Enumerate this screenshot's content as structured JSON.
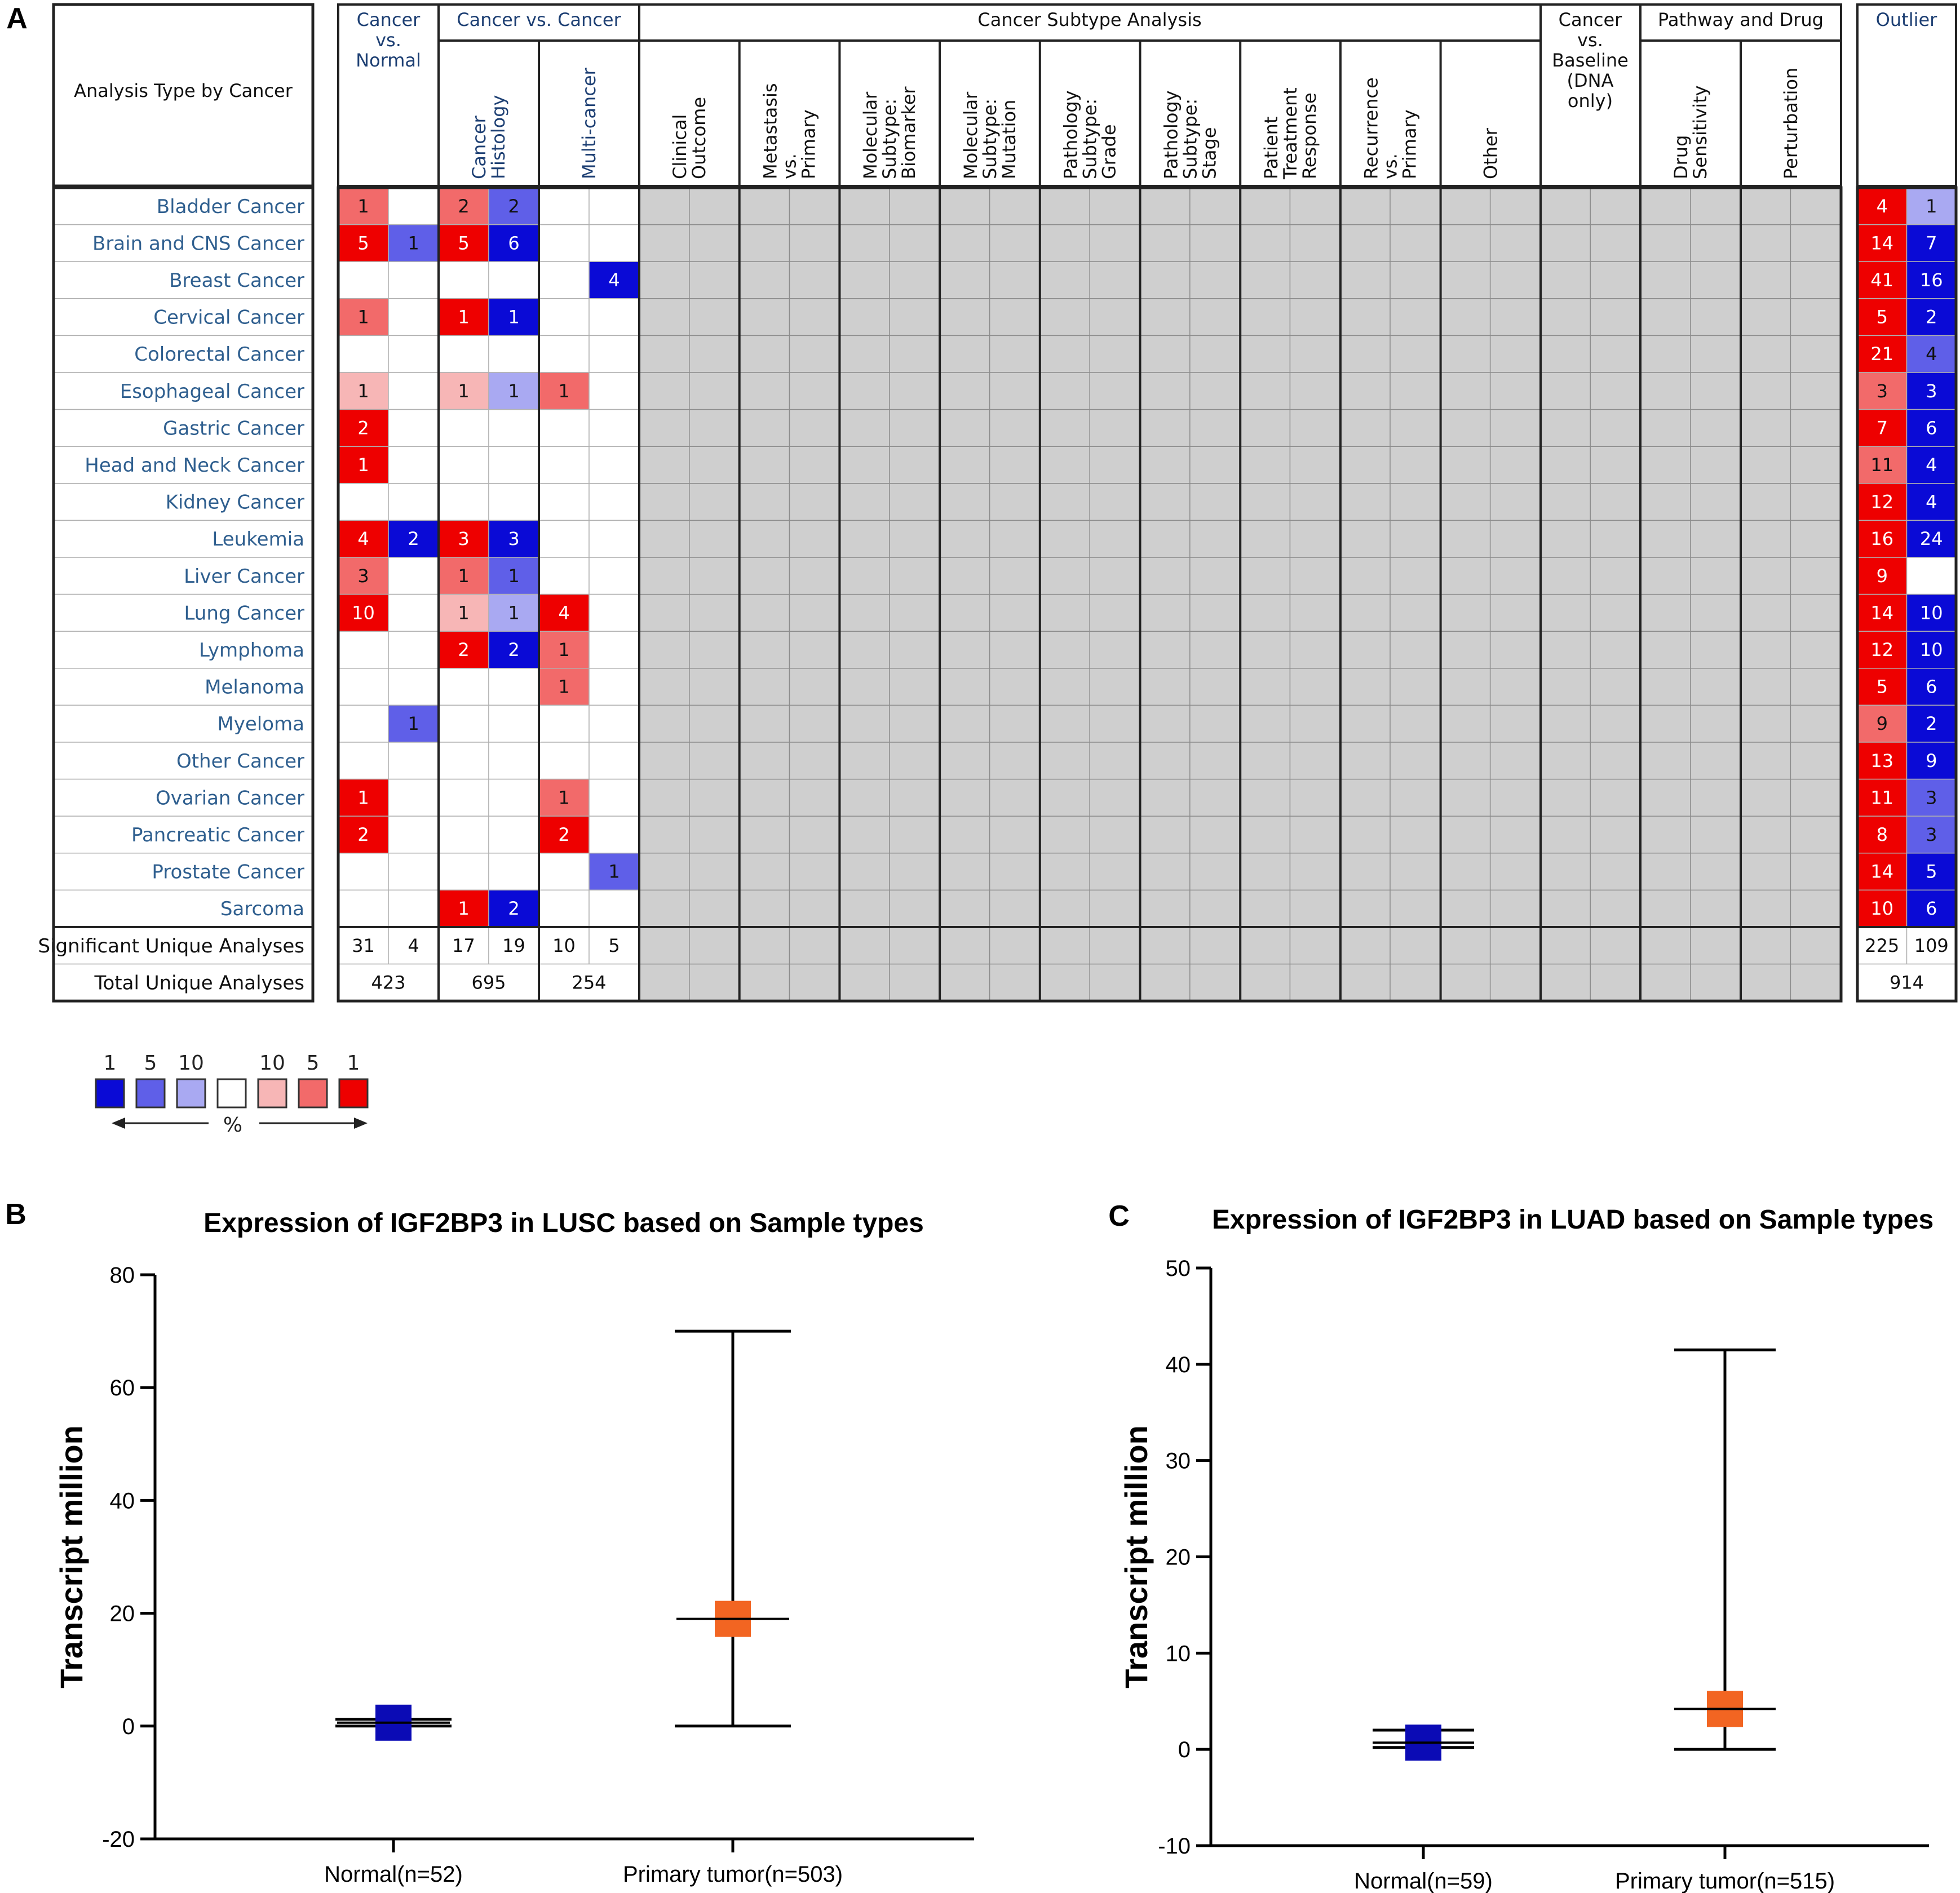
{
  "panels": {
    "a": "A",
    "b": "B",
    "c": "C"
  },
  "colors": {
    "red_strong": "#ee0000",
    "red_mid": "#f26a6a",
    "red_light": "#f7b6b6",
    "blue_strong": "#0a0ad6",
    "blue_mid": "#5f5fe8",
    "blue_light": "#a9a9f2",
    "grey": "#cfcfcf",
    "normal_marker": "#0b0bb5",
    "tumor_marker": "#f26522"
  },
  "heatmap": {
    "corner_label": "Analysis Type by Cancer",
    "groups": {
      "cvn": [
        "Cancer",
        "vs.",
        "Normal"
      ],
      "cvc": "Cancer vs. Cancer",
      "subtype": "Cancer Subtype Analysis",
      "baseline": [
        "Cancer",
        "vs.",
        "Baseline",
        "(DNA",
        "only)"
      ],
      "pathway": "Pathway and Drug",
      "outlier": "Outlier"
    },
    "subheaders": [
      [
        "Cancer",
        "Histology"
      ],
      [
        "Multi-cancer"
      ],
      [
        "Clinical",
        "Outcome"
      ],
      [
        "Metastasis",
        "vs.",
        "Primary"
      ],
      [
        "Molecular",
        "Subtype:",
        "Biomarker"
      ],
      [
        "Molecular",
        "Subtype:",
        "Mutation"
      ],
      [
        "Pathology",
        "Subtype:",
        "Grade"
      ],
      [
        "Pathology",
        "Subtype:",
        "Stage"
      ],
      [
        "Patient",
        "Treatment",
        "Response"
      ],
      [
        "Recurrence",
        "vs.",
        "Primary"
      ],
      [
        "Other"
      ],
      [
        "Drug",
        "Sensitivity"
      ],
      [
        "Perturbation"
      ]
    ],
    "rows": [
      {
        "label": "Bladder Cancer",
        "cvn": [
          [
            "1",
            "m"
          ],
          null
        ],
        "hist": [
          [
            "2",
            "m"
          ],
          [
            "2",
            "m"
          ]
        ],
        "multi": [
          null,
          null
        ],
        "outlier": [
          [
            "4",
            "s"
          ],
          [
            "1",
            "l"
          ]
        ]
      },
      {
        "label": "Brain and CNS Cancer",
        "cvn": [
          [
            "5",
            "s"
          ],
          [
            "1",
            "m"
          ]
        ],
        "hist": [
          [
            "5",
            "s"
          ],
          [
            "6",
            "s"
          ]
        ],
        "multi": [
          null,
          null
        ],
        "outlier": [
          [
            "14",
            "s"
          ],
          [
            "7",
            "s"
          ]
        ]
      },
      {
        "label": "Breast Cancer",
        "cvn": [
          null,
          null
        ],
        "hist": [
          null,
          null
        ],
        "multi": [
          null,
          [
            "4",
            "s"
          ]
        ],
        "outlier": [
          [
            "41",
            "s"
          ],
          [
            "16",
            "s"
          ]
        ]
      },
      {
        "label": "Cervical Cancer",
        "cvn": [
          [
            "1",
            "m"
          ],
          null
        ],
        "hist": [
          [
            "1",
            "s"
          ],
          [
            "1",
            "s"
          ]
        ],
        "multi": [
          null,
          null
        ],
        "outlier": [
          [
            "5",
            "s"
          ],
          [
            "2",
            "s"
          ]
        ]
      },
      {
        "label": "Colorectal Cancer",
        "cvn": [
          null,
          null
        ],
        "hist": [
          null,
          null
        ],
        "multi": [
          null,
          null
        ],
        "outlier": [
          [
            "21",
            "s"
          ],
          [
            "4",
            "m"
          ]
        ]
      },
      {
        "label": "Esophageal Cancer",
        "cvn": [
          [
            "1",
            "l"
          ],
          null
        ],
        "hist": [
          [
            "1",
            "l"
          ],
          [
            "1",
            "l"
          ]
        ],
        "multi": [
          [
            "1",
            "m"
          ],
          null
        ],
        "outlier": [
          [
            "3",
            "m"
          ],
          [
            "3",
            "s"
          ]
        ]
      },
      {
        "label": "Gastric Cancer",
        "cvn": [
          [
            "2",
            "s"
          ],
          null
        ],
        "hist": [
          null,
          null
        ],
        "multi": [
          null,
          null
        ],
        "outlier": [
          [
            "7",
            "s"
          ],
          [
            "6",
            "s"
          ]
        ]
      },
      {
        "label": "Head and Neck Cancer",
        "cvn": [
          [
            "1",
            "s"
          ],
          null
        ],
        "hist": [
          null,
          null
        ],
        "multi": [
          null,
          null
        ],
        "outlier": [
          [
            "11",
            "m"
          ],
          [
            "4",
            "s"
          ]
        ]
      },
      {
        "label": "Kidney Cancer",
        "cvn": [
          null,
          null
        ],
        "hist": [
          null,
          null
        ],
        "multi": [
          null,
          null
        ],
        "outlier": [
          [
            "12",
            "s"
          ],
          [
            "4",
            "s"
          ]
        ]
      },
      {
        "label": "Leukemia",
        "cvn": [
          [
            "4",
            "s"
          ],
          [
            "2",
            "s"
          ]
        ],
        "hist": [
          [
            "3",
            "s"
          ],
          [
            "3",
            "s"
          ]
        ],
        "multi": [
          null,
          null
        ],
        "outlier": [
          [
            "16",
            "s"
          ],
          [
            "24",
            "s"
          ]
        ]
      },
      {
        "label": "Liver Cancer",
        "cvn": [
          [
            "3",
            "m"
          ],
          null
        ],
        "hist": [
          [
            "1",
            "m"
          ],
          [
            "1",
            "m"
          ]
        ],
        "multi": [
          null,
          null
        ],
        "outlier": [
          [
            "9",
            "s"
          ],
          null
        ]
      },
      {
        "label": "Lung Cancer",
        "cvn": [
          [
            "10",
            "s"
          ],
          null
        ],
        "hist": [
          [
            "1",
            "l"
          ],
          [
            "1",
            "l"
          ]
        ],
        "multi": [
          [
            "4",
            "s"
          ],
          null
        ],
        "outlier": [
          [
            "14",
            "s"
          ],
          [
            "10",
            "s"
          ]
        ]
      },
      {
        "label": "Lymphoma",
        "cvn": [
          null,
          null
        ],
        "hist": [
          [
            "2",
            "s"
          ],
          [
            "2",
            "s"
          ]
        ],
        "multi": [
          [
            "1",
            "m"
          ],
          null
        ],
        "outlier": [
          [
            "12",
            "s"
          ],
          [
            "10",
            "s"
          ]
        ]
      },
      {
        "label": "Melanoma",
        "cvn": [
          null,
          null
        ],
        "hist": [
          null,
          null
        ],
        "multi": [
          [
            "1",
            "m"
          ],
          null
        ],
        "outlier": [
          [
            "5",
            "s"
          ],
          [
            "6",
            "s"
          ]
        ]
      },
      {
        "label": "Myeloma",
        "cvn": [
          null,
          [
            "1",
            "m"
          ]
        ],
        "hist": [
          null,
          null
        ],
        "multi": [
          null,
          null
        ],
        "outlier": [
          [
            "9",
            "m"
          ],
          [
            "2",
            "s"
          ]
        ]
      },
      {
        "label": "Other Cancer",
        "cvn": [
          null,
          null
        ],
        "hist": [
          null,
          null
        ],
        "multi": [
          null,
          null
        ],
        "outlier": [
          [
            "13",
            "s"
          ],
          [
            "9",
            "s"
          ]
        ]
      },
      {
        "label": "Ovarian Cancer",
        "cvn": [
          [
            "1",
            "s"
          ],
          null
        ],
        "hist": [
          null,
          null
        ],
        "multi": [
          [
            "1",
            "m"
          ],
          null
        ],
        "outlier": [
          [
            "11",
            "s"
          ],
          [
            "3",
            "m"
          ]
        ]
      },
      {
        "label": "Pancreatic Cancer",
        "cvn": [
          [
            "2",
            "s"
          ],
          null
        ],
        "hist": [
          null,
          null
        ],
        "multi": [
          [
            "2",
            "s"
          ],
          null
        ],
        "outlier": [
          [
            "8",
            "s"
          ],
          [
            "3",
            "m"
          ]
        ]
      },
      {
        "label": "Prostate Cancer",
        "cvn": [
          null,
          null
        ],
        "hist": [
          null,
          null
        ],
        "multi": [
          null,
          [
            "1",
            "m"
          ]
        ],
        "outlier": [
          [
            "14",
            "s"
          ],
          [
            "5",
            "s"
          ]
        ]
      },
      {
        "label": "Sarcoma",
        "cvn": [
          null,
          null
        ],
        "hist": [
          [
            "1",
            "s"
          ],
          [
            "2",
            "s"
          ]
        ],
        "multi": [
          null,
          null
        ],
        "outlier": [
          [
            "10",
            "s"
          ],
          [
            "6",
            "s"
          ]
        ]
      }
    ],
    "significant": {
      "label": "Significant Unique Analyses",
      "cvn": [
        "31",
        "4"
      ],
      "hist": [
        "17",
        "19"
      ],
      "multi": [
        "10",
        "5"
      ],
      "outlier": [
        "225",
        "109"
      ]
    },
    "total": {
      "label": "Total Unique Analyses",
      "cvn": "423",
      "hist": "695",
      "multi": "254",
      "outlier": "914"
    }
  },
  "legend": {
    "numbers": [
      "1",
      "5",
      "10",
      "10",
      "5",
      "1"
    ],
    "unit": "%"
  },
  "chart_data": [
    {
      "type": "scatter",
      "title": "Expression of IGF2BP3 in LUSC based on Sample types",
      "xlabel": "",
      "ylabel": "Transcript million",
      "ylim": [
        -20,
        80
      ],
      "yticks": [
        "80",
        "60",
        "40",
        "20",
        "0",
        "-20"
      ],
      "categories": [
        "Normal(n=52)",
        "Primary tumor(n=503)"
      ],
      "points": [
        {
          "median": 0.6,
          "min": 0.0,
          "max": 1.2
        },
        {
          "median": 19,
          "min": 0.0,
          "max": 70
        }
      ]
    },
    {
      "type": "scatter",
      "title": "Expression of IGF2BP3 in LUAD based on Sample types",
      "xlabel": "",
      "ylabel": "Transcript million",
      "ylim": [
        -10,
        50
      ],
      "yticks": [
        "50",
        "40",
        "30",
        "20",
        "10",
        "0",
        "-10"
      ],
      "categories": [
        "Normal(n=59)",
        "Primary tumor(n=515)"
      ],
      "points": [
        {
          "median": 0.7,
          "min": 0.2,
          "max": 2.0
        },
        {
          "median": 4.2,
          "min": 0.0,
          "max": 41.5
        }
      ]
    }
  ]
}
